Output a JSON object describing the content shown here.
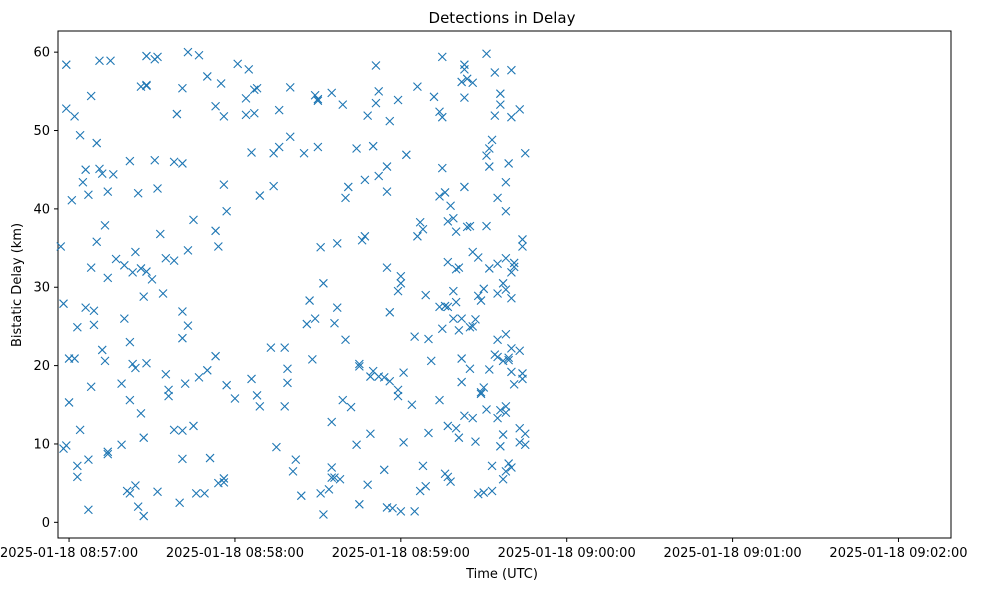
{
  "chart_data": {
    "type": "scatter",
    "title": "Detections in Delay",
    "xlabel": "Time (UTC)",
    "ylabel": "Bistatic Delay (km)",
    "x_tick_labels": [
      "2025-01-18 08:57:00",
      "2025-01-18 08:58:00",
      "2025-01-18 08:59:00",
      "2025-01-18 09:00:00",
      "2025-01-18 09:01:00",
      "2025-01-18 09:02:00"
    ],
    "y_tick_labels": [
      "0",
      "10",
      "20",
      "30",
      "40",
      "50",
      "60"
    ],
    "xlim": [
      "2025-01-18 08:56:56",
      "2025-01-18 09:02:19"
    ],
    "ylim": [
      -2.0,
      62.7
    ],
    "marker": "x",
    "color": "#1f77b4",
    "grid": false,
    "points": [
      [
        "08:56:57",
        35.2
      ],
      [
        "08:56:58",
        27.9
      ],
      [
        "08:56:58",
        9.4
      ],
      [
        "08:56:59",
        58.4
      ],
      [
        "08:56:59",
        9.8
      ],
      [
        "08:56:59",
        52.8
      ],
      [
        "08:57:00",
        20.9
      ],
      [
        "08:57:00",
        15.3
      ],
      [
        "08:57:01",
        41.1
      ],
      [
        "08:57:02",
        51.8
      ],
      [
        "08:57:02",
        20.9
      ],
      [
        "08:57:03",
        5.8
      ],
      [
        "08:57:03",
        24.9
      ],
      [
        "08:57:03",
        7.2
      ],
      [
        "08:57:04",
        49.4
      ],
      [
        "08:57:04",
        11.8
      ],
      [
        "08:57:05",
        43.4
      ],
      [
        "08:57:06",
        45.0
      ],
      [
        "08:57:06",
        27.4
      ],
      [
        "08:57:07",
        41.8
      ],
      [
        "08:57:07",
        1.6
      ],
      [
        "08:57:07",
        8.0
      ],
      [
        "08:57:08",
        32.5
      ],
      [
        "08:57:08",
        54.4
      ],
      [
        "08:57:08",
        17.3
      ],
      [
        "08:57:09",
        27.0
      ],
      [
        "08:57:09",
        25.2
      ],
      [
        "08:57:10",
        48.4
      ],
      [
        "08:57:10",
        35.8
      ],
      [
        "08:57:11",
        58.9
      ],
      [
        "08:57:11",
        45.1
      ],
      [
        "08:57:12",
        22.0
      ],
      [
        "08:57:12",
        44.5
      ],
      [
        "08:57:13",
        20.6
      ],
      [
        "08:57:13",
        37.9
      ],
      [
        "08:57:14",
        42.2
      ],
      [
        "08:57:14",
        31.2
      ],
      [
        "08:57:14",
        9.0
      ],
      [
        "08:57:14",
        8.7
      ],
      [
        "08:57:15",
        58.9
      ],
      [
        "08:57:16",
        44.4
      ],
      [
        "08:57:17",
        33.6
      ],
      [
        "08:57:19",
        9.9
      ],
      [
        "08:57:19",
        17.7
      ],
      [
        "08:57:20",
        32.8
      ],
      [
        "08:57:20",
        26.0
      ],
      [
        "08:57:21",
        4.0
      ],
      [
        "08:57:22",
        3.7
      ],
      [
        "08:57:22",
        23.0
      ],
      [
        "08:57:22",
        15.6
      ],
      [
        "08:57:22",
        46.1
      ],
      [
        "08:57:23",
        31.9
      ],
      [
        "08:57:23",
        20.2
      ],
      [
        "08:57:24",
        19.7
      ],
      [
        "08:57:24",
        34.5
      ],
      [
        "08:57:24",
        4.7
      ],
      [
        "08:57:25",
        2.0
      ],
      [
        "08:57:25",
        42.0
      ],
      [
        "08:57:26",
        13.9
      ],
      [
        "08:57:26",
        32.4
      ],
      [
        "08:57:26",
        55.6
      ],
      [
        "08:57:27",
        28.8
      ],
      [
        "08:57:27",
        10.8
      ],
      [
        "08:57:27",
        0.8
      ],
      [
        "08:57:28",
        59.5
      ],
      [
        "08:57:28",
        32.0
      ],
      [
        "08:57:28",
        20.3
      ],
      [
        "08:57:28",
        55.8
      ],
      [
        "08:57:28",
        55.7
      ],
      [
        "08:57:30",
        31.0
      ],
      [
        "08:57:31",
        59.1
      ],
      [
        "08:57:31",
        46.2
      ],
      [
        "08:57:32",
        42.6
      ],
      [
        "08:57:32",
        3.9
      ],
      [
        "08:57:32",
        59.4
      ],
      [
        "08:57:33",
        36.8
      ],
      [
        "08:57:34",
        29.2
      ],
      [
        "08:57:35",
        18.9
      ],
      [
        "08:57:35",
        33.7
      ],
      [
        "08:57:36",
        16.1
      ],
      [
        "08:57:36",
        16.9
      ],
      [
        "08:57:38",
        11.8
      ],
      [
        "08:57:38",
        33.4
      ],
      [
        "08:57:38",
        46.0
      ],
      [
        "08:57:39",
        52.1
      ],
      [
        "08:57:40",
        2.5
      ],
      [
        "08:57:41",
        55.4
      ],
      [
        "08:57:41",
        45.8
      ],
      [
        "08:57:41",
        26.9
      ],
      [
        "08:57:41",
        23.5
      ],
      [
        "08:57:41",
        11.7
      ],
      [
        "08:57:41",
        8.1
      ],
      [
        "08:57:42",
        17.7
      ],
      [
        "08:57:43",
        60.0
      ],
      [
        "08:57:43",
        25.1
      ],
      [
        "08:57:43",
        34.7
      ],
      [
        "08:57:45",
        12.3
      ],
      [
        "08:57:45",
        38.6
      ],
      [
        "08:57:46",
        3.7
      ],
      [
        "08:57:47",
        59.6
      ],
      [
        "08:57:47",
        18.5
      ],
      [
        "08:57:49",
        3.7
      ],
      [
        "08:57:50",
        19.4
      ],
      [
        "08:57:50",
        56.9
      ],
      [
        "08:57:51",
        8.2
      ],
      [
        "08:57:53",
        37.2
      ],
      [
        "08:57:53",
        53.1
      ],
      [
        "08:57:53",
        21.2
      ],
      [
        "08:57:54",
        35.2
      ],
      [
        "08:57:54",
        5.0
      ],
      [
        "08:57:55",
        56.0
      ],
      [
        "08:57:56",
        5.6
      ],
      [
        "08:57:56",
        51.8
      ],
      [
        "08:57:56",
        43.1
      ],
      [
        "08:57:56",
        5.1
      ],
      [
        "08:57:57",
        17.5
      ],
      [
        "08:57:57",
        39.7
      ],
      [
        "08:58:00",
        15.8
      ],
      [
        "08:58:01",
        58.5
      ],
      [
        "08:58:04",
        52.0
      ],
      [
        "08:58:04",
        54.1
      ],
      [
        "08:58:05",
        57.8
      ],
      [
        "08:58:06",
        47.2
      ],
      [
        "08:58:06",
        18.3
      ],
      [
        "08:58:07",
        55.2
      ],
      [
        "08:58:07",
        52.2
      ],
      [
        "08:58:08",
        55.4
      ],
      [
        "08:58:08",
        16.2
      ],
      [
        "08:58:09",
        14.8
      ],
      [
        "08:58:09",
        41.7
      ],
      [
        "08:58:13",
        22.3
      ],
      [
        "08:58:14",
        42.9
      ],
      [
        "08:58:14",
        47.1
      ],
      [
        "08:58:15",
        9.6
      ],
      [
        "08:58:16",
        47.9
      ],
      [
        "08:58:16",
        52.6
      ],
      [
        "08:58:18",
        22.3
      ],
      [
        "08:58:18",
        14.8
      ],
      [
        "08:58:19",
        17.8
      ],
      [
        "08:58:19",
        19.6
      ],
      [
        "08:58:20",
        55.5
      ],
      [
        "08:58:20",
        49.2
      ],
      [
        "08:58:21",
        6.5
      ],
      [
        "08:58:22",
        8.0
      ],
      [
        "08:58:24",
        3.4
      ],
      [
        "08:58:25",
        47.1
      ],
      [
        "08:58:26",
        25.3
      ],
      [
        "08:58:27",
        28.3
      ],
      [
        "08:58:28",
        20.8
      ],
      [
        "08:58:29",
        26.0
      ],
      [
        "08:58:29",
        54.5
      ],
      [
        "08:58:30",
        54.0
      ],
      [
        "08:58:30",
        47.9
      ],
      [
        "08:58:30",
        53.8
      ],
      [
        "08:58:31",
        35.1
      ],
      [
        "08:58:31",
        3.7
      ],
      [
        "08:58:32",
        1.0
      ],
      [
        "08:58:32",
        30.5
      ],
      [
        "08:58:34",
        4.2
      ],
      [
        "08:58:35",
        5.7
      ],
      [
        "08:58:35",
        12.8
      ],
      [
        "08:58:35",
        54.8
      ],
      [
        "08:58:35",
        7.0
      ],
      [
        "08:58:36",
        25.4
      ],
      [
        "08:58:36",
        5.7
      ],
      [
        "08:58:37",
        27.4
      ],
      [
        "08:58:37",
        35.6
      ],
      [
        "08:58:38",
        5.5
      ],
      [
        "08:58:39",
        53.3
      ],
      [
        "08:58:39",
        15.6
      ],
      [
        "08:58:40",
        41.4
      ],
      [
        "08:58:40",
        23.3
      ],
      [
        "08:58:41",
        42.8
      ],
      [
        "08:58:42",
        14.7
      ],
      [
        "08:58:44",
        47.7
      ],
      [
        "08:58:44",
        9.9
      ],
      [
        "08:58:45",
        20.2
      ],
      [
        "08:58:45",
        19.9
      ],
      [
        "08:58:45",
        2.3
      ],
      [
        "08:58:46",
        36.0
      ],
      [
        "08:58:47",
        36.5
      ],
      [
        "08:58:47",
        43.7
      ],
      [
        "08:58:48",
        51.9
      ],
      [
        "08:58:48",
        4.8
      ],
      [
        "08:58:49",
        18.6
      ],
      [
        "08:58:49",
        11.3
      ],
      [
        "08:58:50",
        19.3
      ],
      [
        "08:58:50",
        48.0
      ],
      [
        "08:58:51",
        58.3
      ],
      [
        "08:58:51",
        53.5
      ],
      [
        "08:58:52",
        44.2
      ],
      [
        "08:58:52",
        55.0
      ],
      [
        "08:58:52",
        18.6
      ],
      [
        "08:58:54",
        6.7
      ],
      [
        "08:58:54",
        18.5
      ],
      [
        "08:58:55",
        45.4
      ],
      [
        "08:58:55",
        1.9
      ],
      [
        "08:58:55",
        42.2
      ],
      [
        "08:58:55",
        32.5
      ],
      [
        "08:58:56",
        18.0
      ],
      [
        "08:58:56",
        51.2
      ],
      [
        "08:58:56",
        26.8
      ],
      [
        "08:58:57",
        1.8
      ],
      [
        "08:58:59",
        53.9
      ],
      [
        "08:58:59",
        16.9
      ],
      [
        "08:58:59",
        16.1
      ],
      [
        "08:58:59",
        29.5
      ],
      [
        "08:59:00",
        30.5
      ],
      [
        "08:59:00",
        1.4
      ],
      [
        "08:59:00",
        31.4
      ],
      [
        "08:59:01",
        19.1
      ],
      [
        "08:59:01",
        10.2
      ],
      [
        "08:59:02",
        46.9
      ],
      [
        "08:59:04",
        15.0
      ],
      [
        "08:59:05",
        1.4
      ],
      [
        "08:59:05",
        23.7
      ],
      [
        "08:59:06",
        55.6
      ],
      [
        "08:59:06",
        36.5
      ],
      [
        "08:59:07",
        4.0
      ],
      [
        "08:59:07",
        38.3
      ],
      [
        "08:59:08",
        7.2
      ],
      [
        "08:59:08",
        37.4
      ],
      [
        "08:59:09",
        4.6
      ],
      [
        "08:59:09",
        29.0
      ],
      [
        "08:59:10",
        23.4
      ],
      [
        "08:59:10",
        11.4
      ],
      [
        "08:59:11",
        20.6
      ],
      [
        "08:59:12",
        54.3
      ],
      [
        "08:59:14",
        52.4
      ],
      [
        "08:59:14",
        15.6
      ],
      [
        "08:59:14",
        27.5
      ],
      [
        "08:59:14",
        41.6
      ],
      [
        "08:59:15",
        45.2
      ],
      [
        "08:59:15",
        24.7
      ],
      [
        "08:59:15",
        51.7
      ],
      [
        "08:59:15",
        59.4
      ],
      [
        "08:59:16",
        42.1
      ],
      [
        "08:59:16",
        6.2
      ],
      [
        "08:59:16",
        27.6
      ],
      [
        "08:59:17",
        12.3
      ],
      [
        "08:59:17",
        38.4
      ],
      [
        "08:59:17",
        33.2
      ],
      [
        "08:59:17",
        5.8
      ],
      [
        "08:59:17",
        27.5
      ],
      [
        "08:59:18",
        5.2
      ],
      [
        "08:59:18",
        40.4
      ],
      [
        "08:59:19",
        38.8
      ],
      [
        "08:59:19",
        29.5
      ],
      [
        "08:59:19",
        26.0
      ],
      [
        "08:59:20",
        12.0
      ],
      [
        "08:59:20",
        37.1
      ],
      [
        "08:59:20",
        28.1
      ],
      [
        "08:59:20",
        32.3
      ],
      [
        "08:59:21",
        32.5
      ],
      [
        "08:59:21",
        10.8
      ],
      [
        "08:59:21",
        24.5
      ],
      [
        "08:59:22",
        56.2
      ],
      [
        "08:59:22",
        17.9
      ],
      [
        "08:59:22",
        26.0
      ],
      [
        "08:59:22",
        20.9
      ],
      [
        "08:59:23",
        13.6
      ],
      [
        "08:59:23",
        58.4
      ],
      [
        "08:59:23",
        57.8
      ],
      [
        "08:59:23",
        54.2
      ],
      [
        "08:59:23",
        42.8
      ],
      [
        "08:59:24",
        56.6
      ],
      [
        "08:59:24",
        37.7
      ],
      [
        "08:59:25",
        37.8
      ],
      [
        "08:59:25",
        24.9
      ],
      [
        "08:59:25",
        19.6
      ],
      [
        "08:59:26",
        25.0
      ],
      [
        "08:59:26",
        34.5
      ],
      [
        "08:59:26",
        13.3
      ],
      [
        "08:59:26",
        56.1
      ],
      [
        "08:59:27",
        25.9
      ],
      [
        "08:59:27",
        10.3
      ],
      [
        "08:59:28",
        3.6
      ],
      [
        "08:59:28",
        33.8
      ],
      [
        "08:59:28",
        28.9
      ],
      [
        "08:59:29",
        16.4
      ],
      [
        "08:59:29",
        16.6
      ],
      [
        "08:59:29",
        28.3
      ],
      [
        "08:59:30",
        17.2
      ],
      [
        "08:59:30",
        29.8
      ],
      [
        "08:59:30",
        3.8
      ],
      [
        "08:59:31",
        46.8
      ],
      [
        "08:59:31",
        37.8
      ],
      [
        "08:59:31",
        59.8
      ],
      [
        "08:59:31",
        14.4
      ],
      [
        "08:59:32",
        47.7
      ],
      [
        "08:59:32",
        45.4
      ],
      [
        "08:59:32",
        32.4
      ],
      [
        "08:59:32",
        19.5
      ],
      [
        "08:59:33",
        48.8
      ],
      [
        "08:59:33",
        7.2
      ],
      [
        "08:59:33",
        4.0
      ],
      [
        "08:59:34",
        57.4
      ],
      [
        "08:59:34",
        21.4
      ],
      [
        "08:59:34",
        51.9
      ],
      [
        "08:59:35",
        41.4
      ],
      [
        "08:59:35",
        29.2
      ],
      [
        "08:59:35",
        23.3
      ],
      [
        "08:59:35",
        21.1
      ],
      [
        "08:59:35",
        33.0
      ],
      [
        "08:59:35",
        13.3
      ],
      [
        "08:59:36",
        9.7
      ],
      [
        "08:59:36",
        14.3
      ],
      [
        "08:59:36",
        54.7
      ],
      [
        "08:59:36",
        53.3
      ],
      [
        "08:59:37",
        11.2
      ],
      [
        "08:59:37",
        5.5
      ],
      [
        "08:59:37",
        20.6
      ],
      [
        "08:59:37",
        30.5
      ],
      [
        "08:59:38",
        39.7
      ],
      [
        "08:59:38",
        43.4
      ],
      [
        "08:59:38",
        14.0
      ],
      [
        "08:59:38",
        6.5
      ],
      [
        "08:59:38",
        24.0
      ],
      [
        "08:59:38",
        29.7
      ],
      [
        "08:59:38",
        33.7
      ],
      [
        "08:59:38",
        14.8
      ],
      [
        "08:59:39",
        45.8
      ],
      [
        "08:59:39",
        21.0
      ],
      [
        "08:59:39",
        7.5
      ],
      [
        "08:59:39",
        20.7
      ],
      [
        "08:59:40",
        57.7
      ],
      [
        "08:59:40",
        51.7
      ],
      [
        "08:59:40",
        28.6
      ],
      [
        "08:59:40",
        31.9
      ],
      [
        "08:59:40",
        22.2
      ],
      [
        "08:59:40",
        19.2
      ],
      [
        "08:59:40",
        7.0
      ],
      [
        "08:59:41",
        33.1
      ],
      [
        "08:59:41",
        17.6
      ],
      [
        "08:59:41",
        32.6
      ],
      [
        "08:59:43",
        21.9
      ],
      [
        "08:59:43",
        10.2
      ],
      [
        "08:59:43",
        52.7
      ],
      [
        "08:59:43",
        12.0
      ],
      [
        "08:59:44",
        35.2
      ],
      [
        "08:59:44",
        19.0
      ],
      [
        "08:59:44",
        18.3
      ],
      [
        "08:59:44",
        36.1
      ],
      [
        "08:59:45",
        47.1
      ],
      [
        "08:59:45",
        11.3
      ],
      [
        "08:59:45",
        9.9
      ]
    ]
  }
}
